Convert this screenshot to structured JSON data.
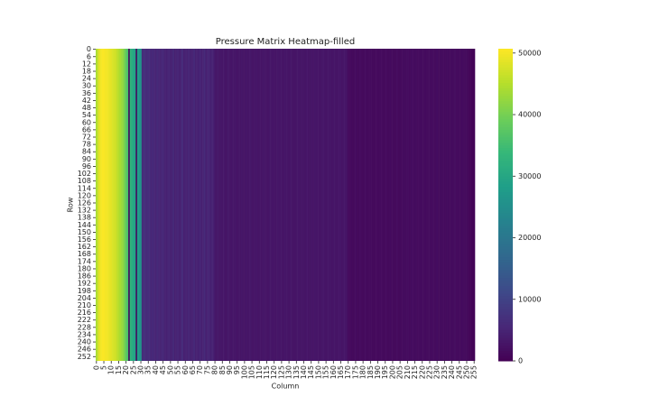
{
  "chart_data": {
    "type": "heatmap",
    "title": "Pressure Matrix Heatmap-filled",
    "x_label": "Column",
    "y_label": "Row",
    "colormap": "viridis",
    "xlim": [
      0,
      256
    ],
    "ylim": [
      0,
      256
    ],
    "xticks": [
      0,
      5,
      10,
      15,
      20,
      25,
      30,
      35,
      40,
      45,
      50,
      55,
      60,
      65,
      70,
      75,
      80,
      85,
      90,
      95,
      100,
      105,
      110,
      115,
      120,
      125,
      130,
      135,
      140,
      145,
      150,
      155,
      160,
      165,
      170,
      175,
      180,
      185,
      190,
      195,
      200,
      205,
      210,
      215,
      220,
      225,
      230,
      235,
      240,
      245,
      250,
      255
    ],
    "yticks": [
      0,
      6,
      12,
      18,
      24,
      30,
      36,
      42,
      48,
      54,
      60,
      66,
      72,
      78,
      84,
      90,
      96,
      102,
      108,
      114,
      120,
      126,
      132,
      138,
      144,
      150,
      156,
      162,
      168,
      174,
      180,
      186,
      192,
      198,
      204,
      210,
      216,
      222,
      228,
      234,
      240,
      246,
      252
    ],
    "clim": [
      0,
      50700
    ],
    "colorbar_ticks": [
      0,
      10000,
      20000,
      30000,
      40000,
      50000
    ],
    "values": [
      44000,
      47000,
      49000,
      50000,
      50500,
      50500,
      50000,
      50000,
      49500,
      49000,
      48500,
      48000,
      47500,
      47000,
      46000,
      45000,
      44000,
      43000,
      42000,
      40000,
      38000,
      36000,
      1000,
      33000,
      31000,
      30000,
      29000,
      2000,
      28000,
      27000,
      26000,
      6000,
      7000,
      6500,
      6000,
      6500,
      6000,
      5500,
      6000,
      5500,
      5000,
      6000,
      5500,
      5000,
      5500,
      6000,
      5000,
      4500,
      5000,
      5500,
      4500,
      5000,
      6000,
      4500,
      5000,
      5500,
      4500,
      5000,
      6500,
      4500,
      5000,
      4500,
      5500,
      5000,
      4500,
      5000,
      6000,
      4500,
      5000,
      4500,
      5500,
      4500,
      5000,
      6000,
      4500,
      5000,
      5500,
      4500,
      5000,
      4500,
      3500,
      3000,
      3500,
      3000,
      3200,
      3000,
      3400,
      2800,
      3000,
      3300,
      3000,
      2900,
      3200,
      3000,
      3100,
      2800,
      3000,
      2900,
      3200,
      3000,
      2800,
      3100,
      3000,
      2900,
      3300,
      3000,
      2800,
      3000,
      3100,
      2900,
      3000,
      2800,
      3000,
      3200,
      2900,
      3000,
      2800,
      3100,
      3000,
      2900,
      3000,
      2800,
      3200,
      3000,
      2900,
      3000,
      2800,
      3100,
      2900,
      3000,
      2800,
      3100,
      3000,
      2900,
      2800,
      3000,
      3100,
      2900,
      3000,
      2800,
      3000,
      2900,
      3100,
      2800,
      3000,
      2900,
      2800,
      3100,
      3000,
      2900,
      3000,
      2800,
      3000,
      3100,
      2900,
      2800,
      3000,
      2900,
      3000,
      2800,
      2900,
      3000,
      2800,
      3000,
      2900,
      3100,
      2800,
      3000,
      2900,
      2800,
      1500,
      1400,
      1500,
      1300,
      1400,
      1500,
      1400,
      1300,
      1500,
      1400,
      1300,
      1400,
      1500,
      1300,
      1400,
      1500,
      1400,
      1300,
      1400,
      1500,
      1300,
      1400,
      1500,
      1400,
      1300,
      1400,
      1500,
      1300,
      1400,
      1500,
      1400,
      1300,
      1400,
      1500,
      1300,
      1400,
      1400,
      1500,
      1600,
      1500,
      1700,
      1500,
      1600,
      1800,
      1500,
      1600,
      1700,
      1500,
      1600,
      1500,
      1700,
      1600,
      1500,
      1600,
      1700,
      1600,
      1500,
      1700,
      1600,
      1500,
      1800,
      1600,
      1500,
      1700,
      1600,
      1500,
      1600,
      1700,
      1500,
      1600,
      1500,
      1600,
      1700,
      1500,
      1600,
      1500,
      1400,
      1500,
      1600,
      1500,
      1400,
      1300,
      800,
      600,
      500,
      400
    ]
  }
}
